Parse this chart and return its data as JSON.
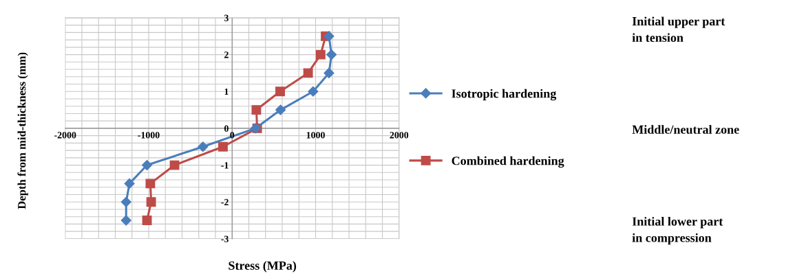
{
  "chart_data": {
    "type": "line",
    "xlabel": "Stress (MPa)",
    "ylabel": "Depth from mid-thickness (mm)",
    "xlim": [
      -2000,
      2000
    ],
    "ylim": [
      -3,
      3
    ],
    "xticks": [
      -2000,
      {
        "value": -1800,
        "label": null
      },
      {
        "value": -1600,
        "label": null
      },
      {
        "value": -1400,
        "label": null
      },
      {
        "value": -1200,
        "label": null
      },
      -1000,
      {
        "value": -800,
        "label": null
      },
      {
        "value": -600,
        "label": null
      },
      {
        "value": -400,
        "label": null
      },
      {
        "value": -200,
        "label": null
      },
      0,
      {
        "value": 200,
        "label": null
      },
      {
        "value": 400,
        "label": null
      },
      {
        "value": 600,
        "label": null
      },
      {
        "value": 800,
        "label": null
      },
      1000,
      {
        "value": 1200,
        "label": null
      },
      {
        "value": 1400,
        "label": null
      },
      {
        "value": 1600,
        "label": null
      },
      {
        "value": 1800,
        "label": null
      },
      2000
    ],
    "yticks": [
      -3,
      {
        "value": -2.8,
        "label": null
      },
      {
        "value": -2.6,
        "label": null
      },
      {
        "value": -2.4,
        "label": null
      },
      {
        "value": -2.2,
        "label": null
      },
      -2,
      {
        "value": -1.8,
        "label": null
      },
      {
        "value": -1.6,
        "label": null
      },
      {
        "value": -1.4,
        "label": null
      },
      {
        "value": -1.2,
        "label": null
      },
      -1,
      {
        "value": -0.8,
        "label": null
      },
      {
        "value": -0.6,
        "label": null
      },
      {
        "value": -0.4,
        "label": null
      },
      {
        "value": -0.2,
        "label": null
      },
      0,
      {
        "value": 0.2,
        "label": null
      },
      {
        "value": 0.4,
        "label": null
      },
      {
        "value": 0.6,
        "label": null
      },
      {
        "value": 0.8,
        "label": null
      },
      1,
      {
        "value": 1.2,
        "label": null
      },
      {
        "value": 1.4,
        "label": null
      },
      {
        "value": 1.6,
        "label": null
      },
      {
        "value": 1.8,
        "label": null
      },
      2,
      {
        "value": 2.2,
        "label": null
      },
      {
        "value": 2.4,
        "label": null
      },
      {
        "value": 2.6,
        "label": null
      },
      {
        "value": 2.8,
        "label": null
      },
      3
    ],
    "grid": true,
    "legend": "right",
    "line_style": "solid",
    "series": [
      {
        "name": "Isotropic hardening",
        "color": "#4a7ebb",
        "marker": "diamond",
        "x": [
          1160,
          1190,
          1160,
          970,
          580,
          280,
          -350,
          -1020,
          -1230,
          -1270,
          -1270
        ],
        "values": [
          2.5,
          2,
          1.5,
          1,
          0.5,
          0,
          -0.5,
          -1,
          -1.5,
          -2,
          -2.5
        ]
      },
      {
        "name": "Combined hardening",
        "color": "#be4b48",
        "marker": "square",
        "x": [
          1120,
          1060,
          910,
          575,
          290,
          300,
          -110,
          -690,
          -980,
          -970,
          -1020
        ],
        "values": [
          2.5,
          2,
          1.5,
          1,
          0.5,
          0,
          -0.5,
          -1,
          -1.5,
          -2,
          -2.5
        ]
      }
    ],
    "annotations": [
      "Initial upper part\nin tension",
      "Middle/neutral zone",
      "Initial lower part\nin compression"
    ]
  }
}
